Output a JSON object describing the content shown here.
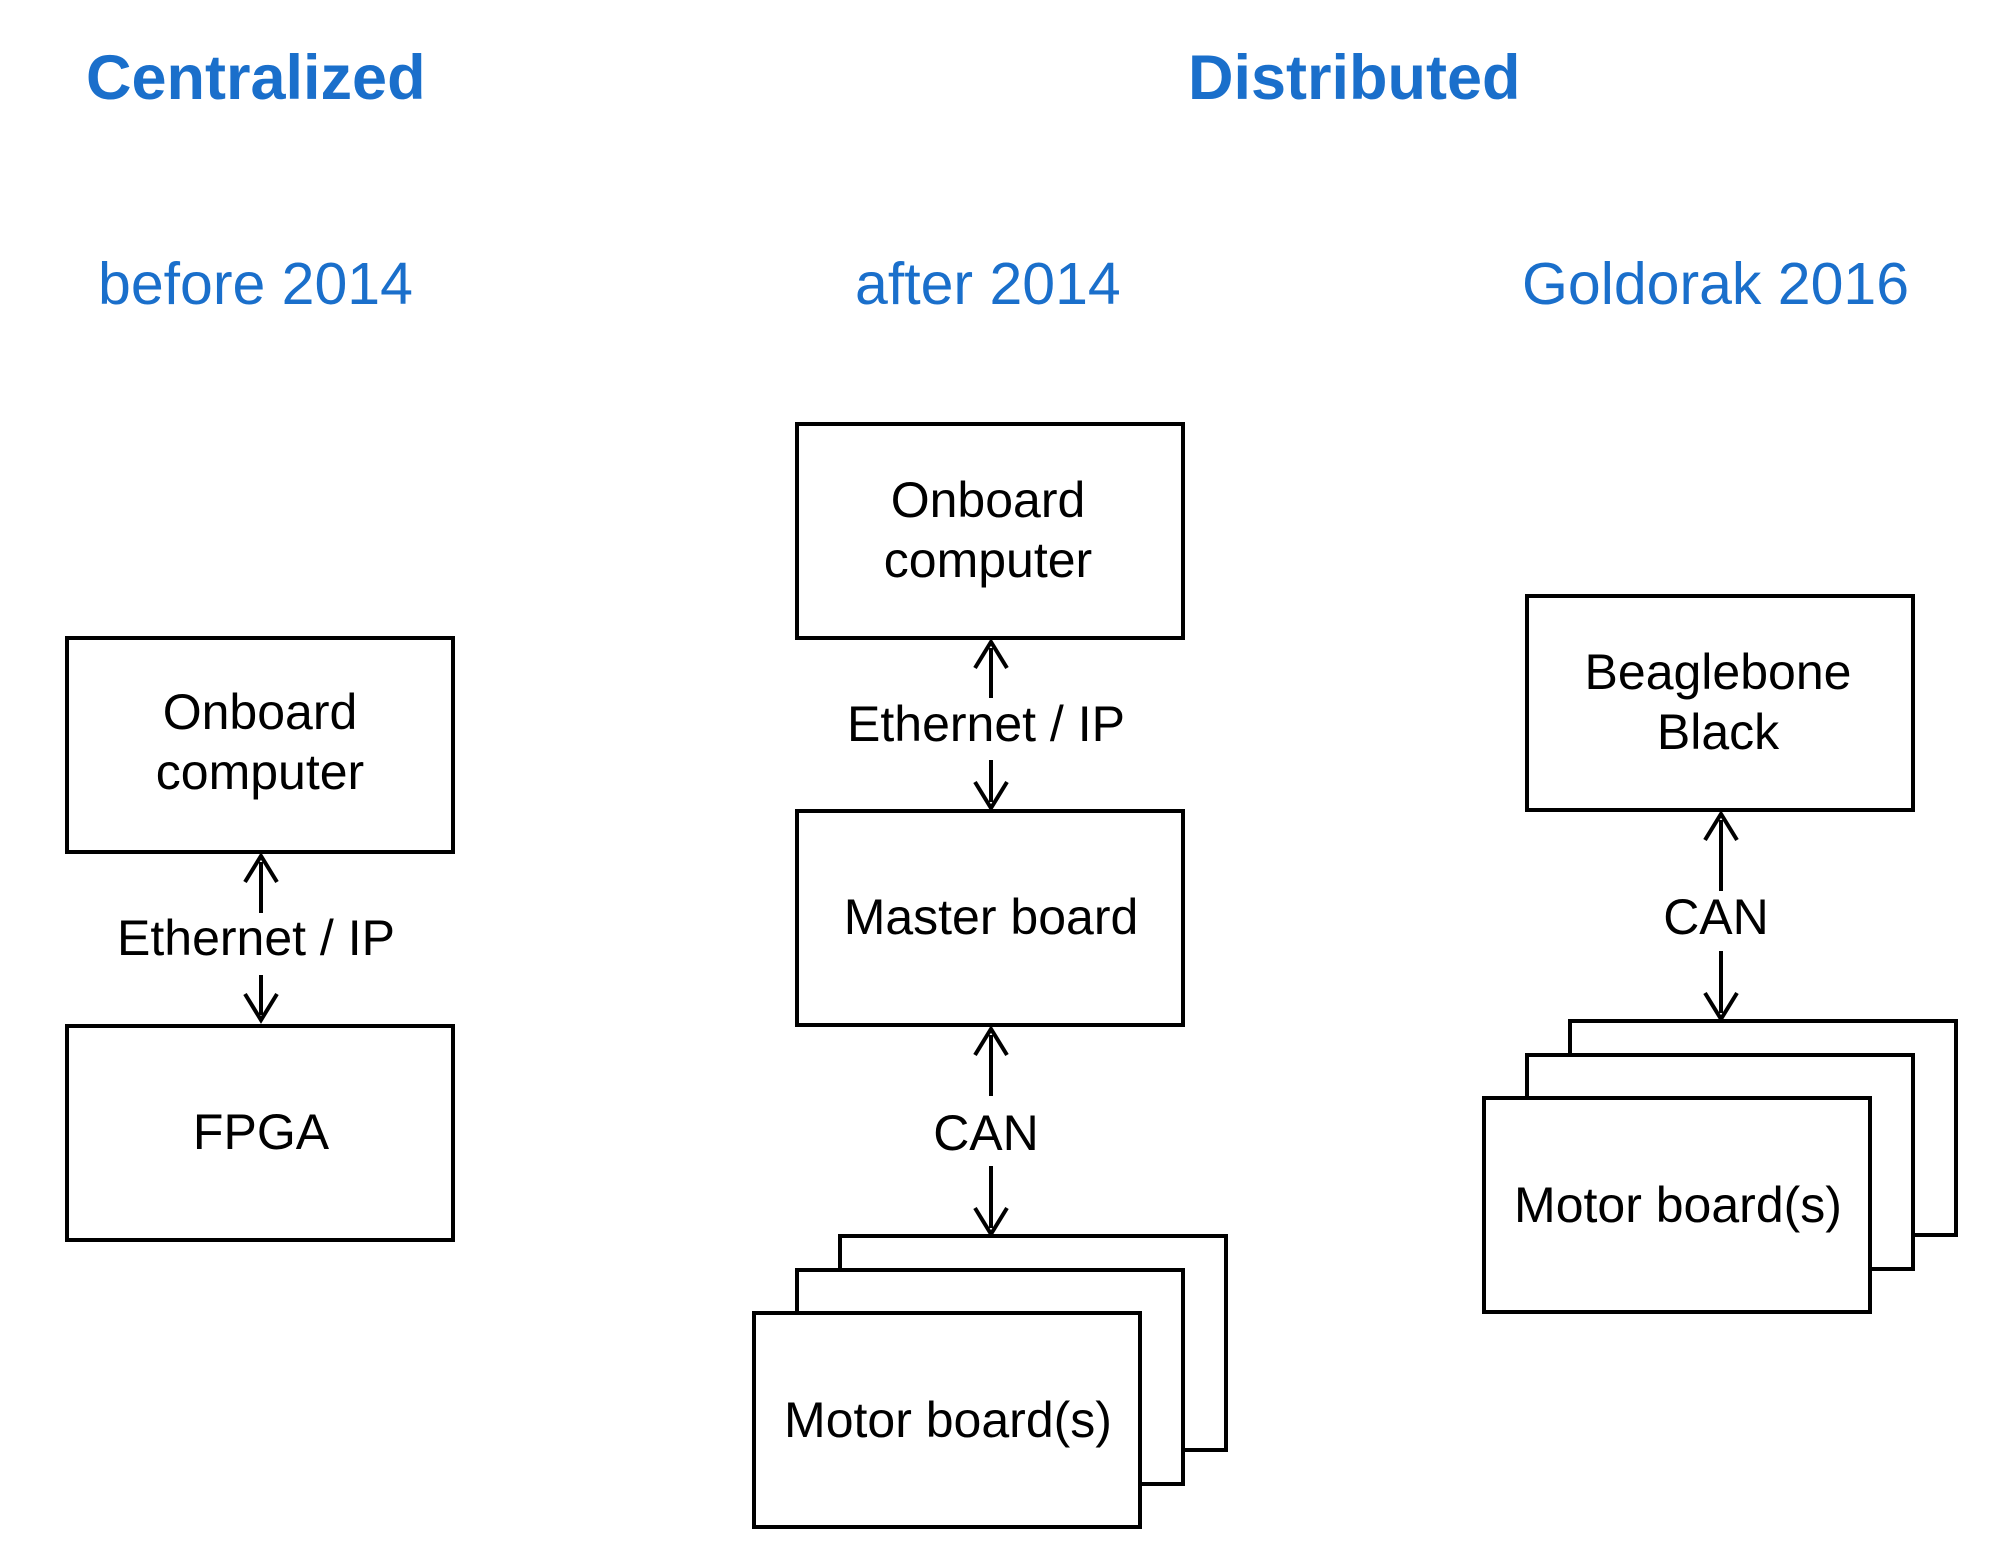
{
  "headings": {
    "centralized": "Centralized",
    "distributed": "Distributed"
  },
  "columns": {
    "before": "before 2014",
    "after": "after 2014",
    "goldorak": "Goldorak 2016"
  },
  "colors": {
    "heading": "#1a6fcb",
    "stroke": "#000000",
    "box_fill": "#ffffff"
  },
  "diagram": {
    "before": {
      "top_box": [
        "Onboard",
        "computer"
      ],
      "link": "Ethernet / IP",
      "bottom_box": [
        "FPGA"
      ]
    },
    "after": {
      "top_box": [
        "Onboard",
        "computer"
      ],
      "link_top": "Ethernet / IP",
      "middle_box": [
        "Master board"
      ],
      "link_bottom": "CAN",
      "bottom_box": [
        "Motor board(s)"
      ]
    },
    "goldorak": {
      "top_box": [
        "Beaglebone",
        "Black"
      ],
      "link": "CAN",
      "bottom_box": [
        "Motor board(s)"
      ]
    }
  }
}
